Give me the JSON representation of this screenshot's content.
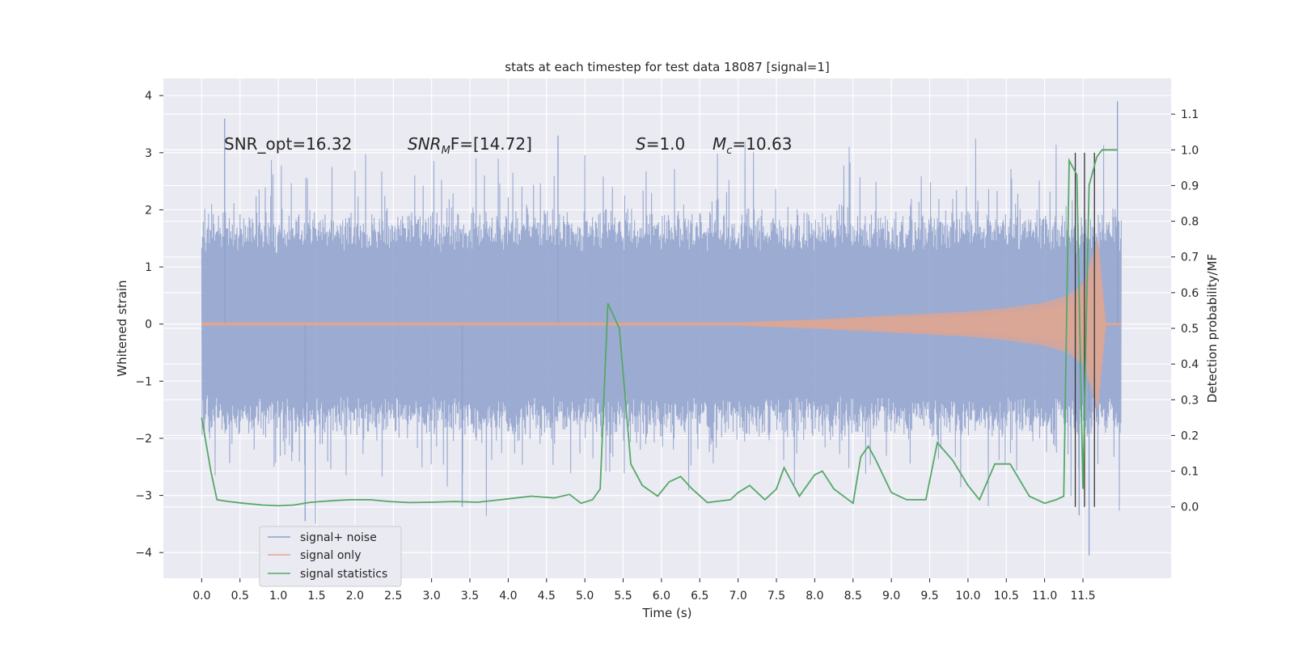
{
  "chart_data": {
    "type": "line",
    "title": "stats at each timestep for test data 18087 [signal=1]",
    "xlabel": "Time (s)",
    "ylabel": "Whitened strain",
    "ylabel_right": "Detection probability/MF",
    "xlim": [
      -0.5,
      12.65
    ],
    "ylim": [
      -4.45,
      4.3
    ],
    "ylim_right": [
      -0.2,
      1.2
    ],
    "xticks": [
      "0.0",
      "0.5",
      "1.0",
      "1.5",
      "2.0",
      "2.5",
      "3.0",
      "3.5",
      "4.0",
      "4.5",
      "5.0",
      "5.5",
      "6.0",
      "6.5",
      "7.0",
      "7.5",
      "8.0",
      "8.5",
      "9.0",
      "9.5",
      "10.0",
      "10.5",
      "11.0",
      "11.5"
    ],
    "yticks_left": [
      "4",
      "3",
      "2",
      "1",
      "0",
      "−1",
      "−2",
      "−3",
      "−4"
    ],
    "yticks_right": [
      "0.0",
      "0.1",
      "0.2",
      "0.3",
      "0.4",
      "0.5",
      "0.6",
      "0.7",
      "0.8",
      "0.9",
      "1.0",
      "1.1"
    ],
    "grid": true,
    "legend_placement": "lower-left",
    "annotations": {
      "snr_opt": "SNR_opt=16.32",
      "snr_mf_base": "SNR",
      "snr_mf_sub": "M",
      "snr_mf_rest": "F=[14.72]",
      "s_sym": "S",
      "s_val": "=1.0",
      "mc_sym": "M",
      "mc_sub": "c",
      "mc_val": "=10.63"
    },
    "series": [
      {
        "name": "signal+ noise",
        "color": "#8da0cb",
        "x_range": [
          0.0,
          12.0
        ],
        "envelope_upper": 2.4,
        "envelope_lower": -2.4,
        "extremes": [
          [
            0.3,
            3.6
          ],
          [
            1.35,
            -3.45
          ],
          [
            3.4,
            -3.2
          ],
          [
            4.65,
            3.3
          ],
          [
            11.45,
            -3.35
          ],
          [
            11.58,
            -4.05
          ],
          [
            11.95,
            3.9
          ]
        ]
      },
      {
        "name": "signal only",
        "color": "#e5a58c",
        "x": [
          0.0,
          7.0,
          8.0,
          9.0,
          10.0,
          10.5,
          11.0,
          11.3,
          11.5,
          11.6,
          11.7,
          11.8,
          12.0
        ],
        "amplitude": [
          0.03,
          0.03,
          0.08,
          0.15,
          0.22,
          0.28,
          0.38,
          0.5,
          0.7,
          1.1,
          1.5,
          0.02,
          0.02
        ]
      },
      {
        "name": "signal statistics",
        "color": "#55a868",
        "x": [
          0.0,
          0.12,
          0.2,
          0.35,
          0.55,
          0.8,
          1.0,
          1.2,
          1.4,
          1.55,
          1.75,
          1.95,
          2.2,
          2.45,
          2.7,
          3.0,
          3.3,
          3.6,
          3.9,
          4.1,
          4.3,
          4.6,
          4.8,
          4.95,
          5.1,
          5.2,
          5.3,
          5.45,
          5.6,
          5.75,
          5.95,
          6.1,
          6.25,
          6.4,
          6.6,
          6.9,
          7.0,
          7.15,
          7.35,
          7.5,
          7.6,
          7.8,
          8.0,
          8.1,
          8.25,
          8.5,
          8.6,
          8.7,
          8.8,
          9.0,
          9.2,
          9.45,
          9.6,
          9.8,
          10.0,
          10.15,
          10.35,
          10.55,
          10.8,
          11.0,
          11.15,
          11.25,
          11.32,
          11.42,
          11.5,
          11.58,
          11.68,
          11.75,
          11.85,
          11.95
        ],
        "values": [
          0.25,
          0.1,
          0.02,
          0.015,
          0.01,
          0.005,
          0.003,
          0.005,
          0.012,
          0.015,
          0.018,
          0.02,
          0.02,
          0.015,
          0.012,
          0.013,
          0.015,
          0.013,
          0.02,
          0.025,
          0.03,
          0.025,
          0.035,
          0.01,
          0.02,
          0.05,
          0.57,
          0.5,
          0.12,
          0.06,
          0.03,
          0.07,
          0.085,
          0.05,
          0.012,
          0.02,
          0.04,
          0.06,
          0.02,
          0.05,
          0.11,
          0.03,
          0.09,
          0.1,
          0.05,
          0.01,
          0.14,
          0.17,
          0.13,
          0.04,
          0.02,
          0.02,
          0.18,
          0.13,
          0.06,
          0.02,
          0.12,
          0.12,
          0.03,
          0.01,
          0.02,
          0.03,
          0.97,
          0.93,
          0.05,
          0.9,
          0.98,
          1.0,
          1.0,
          1.0
        ]
      }
    ],
    "vertical_markers": {
      "x": [
        11.4,
        11.52,
        11.65
      ],
      "y_from": -3.2,
      "y_to": 3.0,
      "color": "#333333"
    }
  }
}
